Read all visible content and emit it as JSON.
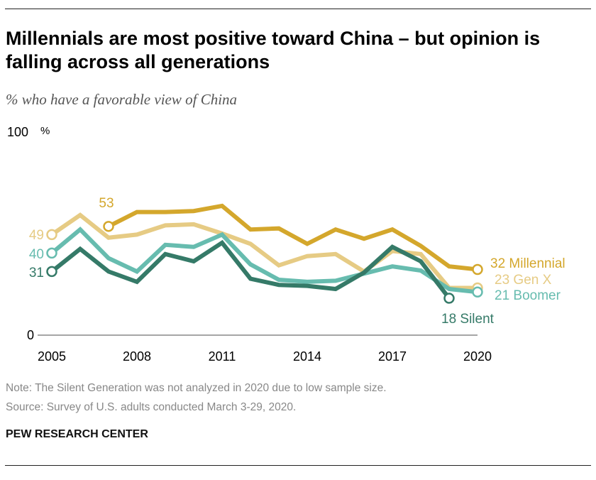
{
  "header": {
    "title": "Millennials are most positive toward China – but opinion is falling across all generations",
    "subtitle": "% who have a favorable view of China"
  },
  "chart_data": {
    "type": "line",
    "title": "Millennials are most positive toward China – but opinion is falling across all generations",
    "subtitle": "% who have a favorable view of China",
    "ylim": [
      0,
      100
    ],
    "y_ticks": [
      "0",
      "100"
    ],
    "y_unit": "%",
    "x_ticks": [
      "2005",
      "2008",
      "2011",
      "2014",
      "2017",
      "2020"
    ],
    "grid": false,
    "series": [
      {
        "name": "Millennial",
        "color": "#d4a72c",
        "start_label": "53",
        "end_label": "32 Millennial",
        "points": [
          [
            2007,
            53
          ],
          [
            2008,
            60
          ],
          [
            2009,
            60
          ],
          [
            2010,
            60.5
          ],
          [
            2011,
            63
          ],
          [
            2012,
            51.5
          ],
          [
            2013,
            52
          ],
          [
            2014,
            44.5
          ],
          [
            2015,
            51.5
          ],
          [
            2016,
            47
          ],
          [
            2017,
            51.5
          ],
          [
            2018,
            43.5
          ],
          [
            2019,
            33.5
          ],
          [
            2020,
            32
          ]
        ]
      },
      {
        "name": "Gen X",
        "color": "#e6cb84",
        "start_label": "49",
        "end_label": "23 Gen X",
        "points": [
          [
            2005,
            49
          ],
          [
            2006,
            58.5
          ],
          [
            2007,
            47.5
          ],
          [
            2008,
            49
          ],
          [
            2009,
            53.5
          ],
          [
            2010,
            54
          ],
          [
            2011,
            49.5
          ],
          [
            2012,
            44.5
          ],
          [
            2013,
            34
          ],
          [
            2014,
            38.5
          ],
          [
            2015,
            39.5
          ],
          [
            2016,
            31
          ],
          [
            2017,
            41
          ],
          [
            2018,
            39.5
          ],
          [
            2019,
            23
          ],
          [
            2020,
            23
          ]
        ]
      },
      {
        "name": "Boomer",
        "color": "#67bcaf",
        "start_label": "40",
        "end_label": "21 Boomer",
        "points": [
          [
            2005,
            40
          ],
          [
            2006,
            51.5
          ],
          [
            2007,
            37.5
          ],
          [
            2008,
            31
          ],
          [
            2009,
            44
          ],
          [
            2010,
            43
          ],
          [
            2011,
            49
          ],
          [
            2012,
            34.5
          ],
          [
            2013,
            27
          ],
          [
            2014,
            26
          ],
          [
            2015,
            26.5
          ],
          [
            2016,
            30
          ],
          [
            2017,
            33.5
          ],
          [
            2018,
            31.5
          ],
          [
            2019,
            22.5
          ],
          [
            2020,
            21
          ]
        ]
      },
      {
        "name": "Silent",
        "color": "#357a68",
        "start_label": "31",
        "end_label": "18 Silent",
        "points": [
          [
            2005,
            31
          ],
          [
            2006,
            42
          ],
          [
            2007,
            31
          ],
          [
            2008,
            26
          ],
          [
            2009,
            39.5
          ],
          [
            2010,
            36
          ],
          [
            2011,
            45
          ],
          [
            2012,
            27.5
          ],
          [
            2013,
            24.5
          ],
          [
            2014,
            24
          ],
          [
            2015,
            22.5
          ],
          [
            2016,
            30.5
          ],
          [
            2017,
            43
          ],
          [
            2018,
            36
          ],
          [
            2019,
            18
          ]
        ]
      }
    ]
  },
  "footer": {
    "note": "Note: The Silent Generation was not analyzed in 2020 due to low sample size.",
    "source": "Source: Survey of U.S. adults conducted March 3-29, 2020.",
    "brand": "PEW RESEARCH CENTER"
  }
}
